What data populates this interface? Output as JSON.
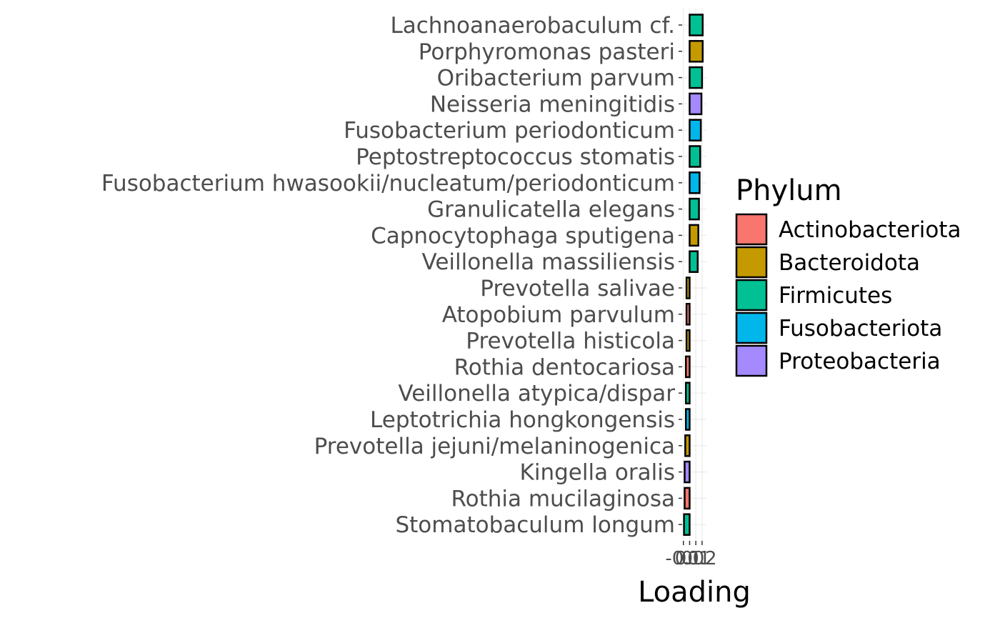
{
  "chart_data": {
    "type": "bar",
    "orientation": "horizontal",
    "xlabel": "Loading",
    "ylabel": "",
    "x_tick_labels": [
      "-0.1",
      "0.0",
      "0.1",
      "0.2"
    ],
    "x_ticks": [
      -0.1,
      0.0,
      0.1,
      0.2
    ],
    "xlim": [
      -0.12,
      0.27
    ],
    "grid": true,
    "legend": {
      "title": "Phylum",
      "position": "right",
      "entries": [
        {
          "name": "Actinobacteriota",
          "color": "#F8766D"
        },
        {
          "name": "Bacteroidota",
          "color": "#C49A00"
        },
        {
          "name": "Firmicutes",
          "color": "#00C094"
        },
        {
          "name": "Fusobacteriota",
          "color": "#00B6EB"
        },
        {
          "name": "Proteobacteria",
          "color": "#A58AFF"
        }
      ]
    },
    "categories": [
      "Lachnoanaerobaculum cf.",
      "Porphyromonas pasteri",
      "Oribacterium parvum",
      "Neisseria meningitidis",
      "Fusobacterium periodonticum",
      "Peptostreptococcus stomatis",
      "Fusobacterium hwasookii/nucleatum/periodonticum",
      "Granulicatella elegans",
      "Capnocytophaga sputigena",
      "Veillonella massiliensis",
      "Prevotella salivae",
      "Atopobium parvulum",
      "Prevotella histicola",
      "Rothia dentocariosa",
      "Veillonella atypica/dispar",
      "Leptotrichia hongkongensis",
      "Prevotella jejuni/melaninogenica",
      "Kingella oralis",
      "Rothia mucilaginosa",
      "Stomatobaculum longum"
    ],
    "values": [
      0.21,
      0.21,
      0.2,
      0.19,
      0.18,
      0.17,
      0.16,
      0.15,
      0.14,
      0.13,
      -0.05,
      -0.05,
      -0.05,
      -0.06,
      -0.06,
      -0.06,
      -0.07,
      -0.08,
      -0.08,
      -0.09
    ],
    "phylum": [
      "Firmicutes",
      "Bacteroidota",
      "Firmicutes",
      "Proteobacteria",
      "Fusobacteriota",
      "Firmicutes",
      "Fusobacteriota",
      "Firmicutes",
      "Bacteroidota",
      "Firmicutes",
      "Bacteroidota",
      "Actinobacteriota",
      "Bacteroidota",
      "Actinobacteriota",
      "Firmicutes",
      "Fusobacteriota",
      "Bacteroidota",
      "Proteobacteria",
      "Actinobacteriota",
      "Firmicutes"
    ]
  }
}
